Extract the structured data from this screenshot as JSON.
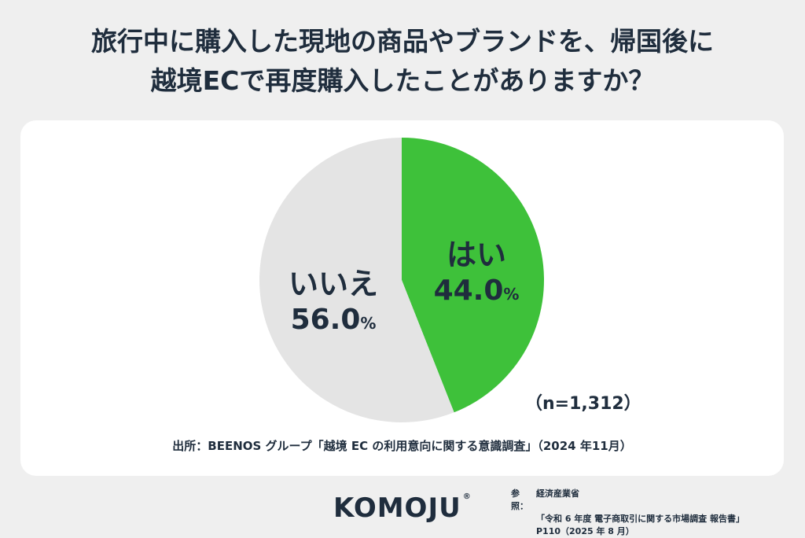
{
  "title": {
    "line1": "旅行中に購入した現地の商品やブランドを、帰国後に",
    "line2": "越境ECで再度購入したことがありますか？"
  },
  "chart_data": {
    "type": "pie",
    "slices": [
      {
        "name": "はい",
        "value": 44.0,
        "pct_text": "44.0",
        "color": "#3ec13a"
      },
      {
        "name": "いいえ",
        "value": 56.0,
        "pct_text": "56.0",
        "color": "#e4e4e4"
      }
    ],
    "percent_unit": "%",
    "sample_note": "（n=1,312）",
    "source": "出所：BEENOS グループ「越境 EC の利用意向に関する意識調査」（2024 年11月）"
  },
  "brand": {
    "logo": "KOMOJU",
    "reg_mark": "®"
  },
  "reference": {
    "label": "参照：",
    "line1": "経済産業省",
    "line2": "「令和 6 年度 電子商取引に関する市場調査 報告書」",
    "line3": "P110（2025 年 8 月）"
  },
  "colors": {
    "background": "#efefef",
    "card": "#ffffff",
    "text": "#1f2d3d"
  }
}
